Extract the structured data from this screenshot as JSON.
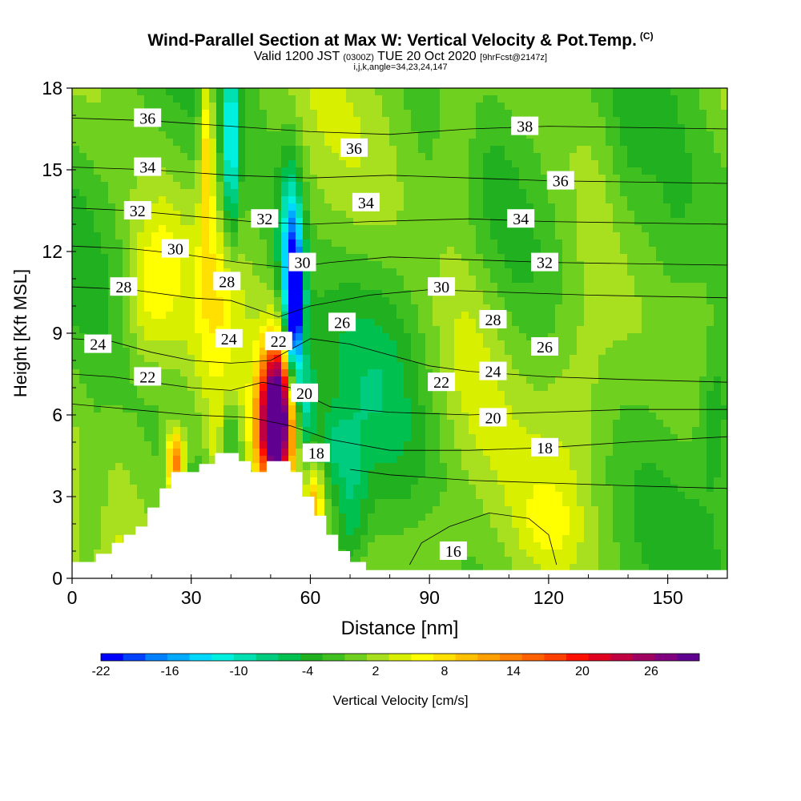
{
  "header": {
    "title": "Wind-Parallel Section at Max W: Vertical Velocity & Pot.Temp.",
    "title_tag": "(C)",
    "valid_prefix": "Valid 1200 JST",
    "valid_utc": "(0300Z)",
    "valid_date": "TUE 20 Oct 2020",
    "forecast": "[9hrFcst@2147z]",
    "ijk": "i,j,k,angle=34,23,24,147"
  },
  "chart_data": {
    "type": "heatmap",
    "xlabel": "Distance [nm]",
    "ylabel": "Height [Kft MSL]",
    "xlim": [
      0,
      165
    ],
    "ylim": [
      0,
      18
    ],
    "x_ticks": [
      0,
      30,
      60,
      90,
      120,
      150
    ],
    "y_ticks": [
      0,
      3,
      6,
      9,
      12,
      15,
      18
    ],
    "terrain": [
      [
        0,
        0.6
      ],
      [
        6,
        0.6
      ],
      [
        6,
        0.9
      ],
      [
        10,
        0.9
      ],
      [
        10,
        1.3
      ],
      [
        13,
        1.3
      ],
      [
        13,
        1.6
      ],
      [
        16,
        1.6
      ],
      [
        16,
        1.9
      ],
      [
        19,
        1.9
      ],
      [
        19,
        2.6
      ],
      [
        22,
        2.6
      ],
      [
        22,
        3.3
      ],
      [
        25,
        3.3
      ],
      [
        25,
        3.9
      ],
      [
        32,
        3.9
      ],
      [
        32,
        4.2
      ],
      [
        36,
        4.2
      ],
      [
        36,
        4.6
      ],
      [
        42,
        4.6
      ],
      [
        42,
        4.3
      ],
      [
        45,
        4.3
      ],
      [
        45,
        3.9
      ],
      [
        49,
        3.9
      ],
      [
        49,
        4.3
      ],
      [
        55,
        4.3
      ],
      [
        55,
        3.9
      ],
      [
        58,
        3.9
      ],
      [
        58,
        3.0
      ],
      [
        61,
        3.0
      ],
      [
        61,
        2.3
      ],
      [
        64,
        2.3
      ],
      [
        64,
        1.6
      ],
      [
        67,
        1.6
      ],
      [
        67,
        1.0
      ],
      [
        70,
        1.0
      ],
      [
        70,
        0.6
      ],
      [
        74,
        0.6
      ],
      [
        74,
        0.3
      ],
      [
        165,
        0.3
      ]
    ],
    "w_field": [
      {
        "x": 51.5,
        "y": 6.2,
        "sx": 2.8,
        "sy": 1.8,
        "w": 33
      },
      {
        "x": 50,
        "y": 4.8,
        "sx": 3.5,
        "sy": 1.5,
        "w": 10
      },
      {
        "x": 40,
        "y": 5.3,
        "sx": 1.6,
        "sy": 0.9,
        "w": -5
      },
      {
        "x": 26,
        "y": 4.3,
        "sx": 1.6,
        "sy": 0.8,
        "w": 16
      },
      {
        "x": 36,
        "y": 4.6,
        "sx": 2,
        "sy": 1.5,
        "w": 4
      },
      {
        "x": 61,
        "y": 2.6,
        "sx": 1.5,
        "sy": 1.4,
        "w": 10
      },
      {
        "x": 56,
        "y": 9.8,
        "sx": 1.5,
        "sy": 2,
        "w": -22
      },
      {
        "x": 55,
        "y": 12,
        "sx": 2.2,
        "sy": 2.5,
        "w": -12
      },
      {
        "x": 59,
        "y": 6.2,
        "sx": 1.8,
        "sy": 1.3,
        "w": -9
      },
      {
        "x": 65,
        "y": 4.8,
        "sx": 3,
        "sy": 0.9,
        "w": -5
      },
      {
        "x": 40,
        "y": 16,
        "sx": 1.3,
        "sy": 2.5,
        "w": -12
      },
      {
        "x": 34,
        "y": 16,
        "sx": 1.3,
        "sy": 2.5,
        "w": 10
      },
      {
        "x": 36,
        "y": 10.3,
        "sx": 4,
        "sy": 2.5,
        "w": 4
      },
      {
        "x": 22,
        "y": 11,
        "sx": 4,
        "sy": 2,
        "w": 5
      },
      {
        "x": 17,
        "y": 10,
        "sx": 3.5,
        "sy": 1.8,
        "w": 3
      },
      {
        "x": 70,
        "y": 2.5,
        "sx": 3,
        "sy": 2,
        "w": -6
      },
      {
        "x": 78,
        "y": 8,
        "sx": 8,
        "sy": 3,
        "w": -3
      },
      {
        "x": 97,
        "y": 16,
        "sx": 4,
        "sy": 2.5,
        "w": 4
      },
      {
        "x": 100,
        "y": 9,
        "sx": 6,
        "sy": 3,
        "w": 3
      },
      {
        "x": 128,
        "y": 7,
        "sx": 6,
        "sy": 3,
        "w": 3
      },
      {
        "x": 120,
        "y": 2,
        "sx": 5,
        "sy": 1.2,
        "w": 3
      },
      {
        "x": 150,
        "y": 12,
        "sx": 6,
        "sy": 3,
        "w": -4
      },
      {
        "x": 162,
        "y": 6,
        "sx": 3,
        "sy": 2,
        "w": -5
      },
      {
        "x": 5,
        "y": 3,
        "sx": 3,
        "sy": 2,
        "w": -4
      },
      {
        "x": 90,
        "y": 1.5,
        "sx": 5,
        "sy": 1.5,
        "w": 2
      },
      {
        "x": 140,
        "y": 15,
        "sx": 4,
        "sy": 3,
        "w": -3
      }
    ],
    "theta_labels": [
      {
        "text": "36",
        "x": 19,
        "y": 16.9
      },
      {
        "text": "34",
        "x": 19,
        "y": 15.1
      },
      {
        "text": "32",
        "x": 16.5,
        "y": 13.5
      },
      {
        "text": "30",
        "x": 26,
        "y": 12.1
      },
      {
        "text": "28",
        "x": 13,
        "y": 10.7
      },
      {
        "text": "24",
        "x": 6.5,
        "y": 8.6
      },
      {
        "text": "22",
        "x": 19,
        "y": 7.4
      },
      {
        "text": "32",
        "x": 48.5,
        "y": 13.2
      },
      {
        "text": "30",
        "x": 58,
        "y": 11.6
      },
      {
        "text": "28",
        "x": 39,
        "y": 10.9
      },
      {
        "text": "24",
        "x": 39.5,
        "y": 8.8
      },
      {
        "text": "22",
        "x": 52,
        "y": 8.7
      },
      {
        "text": "26",
        "x": 68,
        "y": 9.4
      },
      {
        "text": "20",
        "x": 58.5,
        "y": 6.8
      },
      {
        "text": "18",
        "x": 61.5,
        "y": 4.6
      },
      {
        "text": "36",
        "x": 71,
        "y": 15.8
      },
      {
        "text": "34",
        "x": 74,
        "y": 13.8
      },
      {
        "text": "38",
        "x": 114,
        "y": 16.6
      },
      {
        "text": "36",
        "x": 123,
        "y": 14.6
      },
      {
        "text": "34",
        "x": 113,
        "y": 13.2
      },
      {
        "text": "32",
        "x": 119,
        "y": 11.6
      },
      {
        "text": "30",
        "x": 93,
        "y": 10.7
      },
      {
        "text": "28",
        "x": 106,
        "y": 9.5
      },
      {
        "text": "26",
        "x": 119,
        "y": 8.5
      },
      {
        "text": "24",
        "x": 106,
        "y": 7.6
      },
      {
        "text": "22",
        "x": 93,
        "y": 7.2
      },
      {
        "text": "20",
        "x": 106,
        "y": 5.9
      },
      {
        "text": "18",
        "x": 119,
        "y": 4.8
      },
      {
        "text": "16",
        "x": 96,
        "y": 1.0
      }
    ],
    "theta_contours": [
      [
        [
          0,
          8.8
        ],
        [
          10,
          8.7
        ],
        [
          20,
          8.3
        ],
        [
          30,
          8.0
        ],
        [
          40,
          7.9
        ],
        [
          50,
          8.0
        ],
        [
          60,
          8.8
        ],
        [
          70,
          8.6
        ],
        [
          80,
          8.2
        ],
        [
          90,
          7.8
        ],
        [
          100,
          7.6
        ],
        [
          110,
          7.5
        ],
        [
          120,
          7.4
        ],
        [
          140,
          7.3
        ],
        [
          165,
          7.2
        ]
      ],
      [
        [
          0,
          7.5
        ],
        [
          10,
          7.4
        ],
        [
          20,
          7.2
        ],
        [
          30,
          7.0
        ],
        [
          40,
          6.9
        ],
        [
          48,
          7.2
        ],
        [
          55,
          7.0
        ],
        [
          65,
          6.3
        ],
        [
          80,
          6.1
        ],
        [
          100,
          6.0
        ],
        [
          120,
          6.1
        ],
        [
          140,
          6.2
        ],
        [
          165,
          6.2
        ]
      ],
      [
        [
          0,
          6.4
        ],
        [
          15,
          6.2
        ],
        [
          30,
          6.0
        ],
        [
          45,
          5.9
        ],
        [
          55,
          5.6
        ],
        [
          65,
          5.1
        ],
        [
          80,
          4.7
        ],
        [
          100,
          4.7
        ],
        [
          120,
          4.8
        ],
        [
          140,
          5.0
        ],
        [
          165,
          5.2
        ]
      ],
      [
        [
          0,
          10.7
        ],
        [
          15,
          10.6
        ],
        [
          30,
          10.3
        ],
        [
          40,
          10.2
        ],
        [
          52,
          9.6
        ],
        [
          60,
          10.0
        ],
        [
          75,
          10.4
        ],
        [
          90,
          10.6
        ],
        [
          110,
          10.5
        ],
        [
          130,
          10.4
        ],
        [
          165,
          10.3
        ]
      ],
      [
        [
          0,
          12.2
        ],
        [
          15,
          12.1
        ],
        [
          28,
          11.9
        ],
        [
          42,
          11.6
        ],
        [
          55,
          11.4
        ],
        [
          65,
          11.6
        ],
        [
          80,
          11.8
        ],
        [
          100,
          11.7
        ],
        [
          120,
          11.6
        ],
        [
          165,
          11.5
        ]
      ],
      [
        [
          0,
          13.6
        ],
        [
          15,
          13.5
        ],
        [
          30,
          13.3
        ],
        [
          45,
          13.1
        ],
        [
          60,
          13.0
        ],
        [
          75,
          13.1
        ],
        [
          100,
          13.2
        ],
        [
          120,
          13.1
        ],
        [
          165,
          13.0
        ]
      ],
      [
        [
          0,
          15.1
        ],
        [
          20,
          15.0
        ],
        [
          40,
          14.8
        ],
        [
          60,
          14.7
        ],
        [
          80,
          14.8
        ],
        [
          100,
          14.7
        ],
        [
          120,
          14.6
        ],
        [
          165,
          14.5
        ]
      ],
      [
        [
          0,
          16.9
        ],
        [
          20,
          16.8
        ],
        [
          40,
          16.6
        ],
        [
          60,
          16.4
        ],
        [
          80,
          16.3
        ],
        [
          100,
          16.5
        ],
        [
          120,
          16.6
        ],
        [
          165,
          16.5
        ]
      ],
      [
        [
          70,
          4.0
        ],
        [
          80,
          3.8
        ],
        [
          100,
          3.6
        ],
        [
          120,
          3.5
        ],
        [
          140,
          3.4
        ],
        [
          165,
          3.3
        ]
      ],
      [
        [
          85,
          0.5
        ],
        [
          88,
          1.3
        ],
        [
          95,
          1.9
        ],
        [
          105,
          2.4
        ],
        [
          115,
          2.2
        ],
        [
          120,
          1.6
        ],
        [
          122,
          0.5
        ]
      ]
    ],
    "colorbar": {
      "label": "Vertical Velocity [cm/s]",
      "tick_labels": [
        "-22",
        "-16",
        "-10",
        "-4",
        "2",
        "8",
        "14",
        "20",
        "26"
      ],
      "colors": [
        "#0000ff",
        "#0040ff",
        "#0080ff",
        "#00aaff",
        "#00d8ff",
        "#00f0e0",
        "#00e0b0",
        "#00cc80",
        "#00c050",
        "#20b020",
        "#40c020",
        "#70d020",
        "#a8e020",
        "#d8f000",
        "#ffff00",
        "#ffe000",
        "#ffc000",
        "#ffa000",
        "#ff8000",
        "#ff6000",
        "#ff4000",
        "#ff1000",
        "#e00020",
        "#c00040",
        "#a00060",
        "#800080",
        "#600090"
      ],
      "min": -24,
      "step": 2
    }
  }
}
